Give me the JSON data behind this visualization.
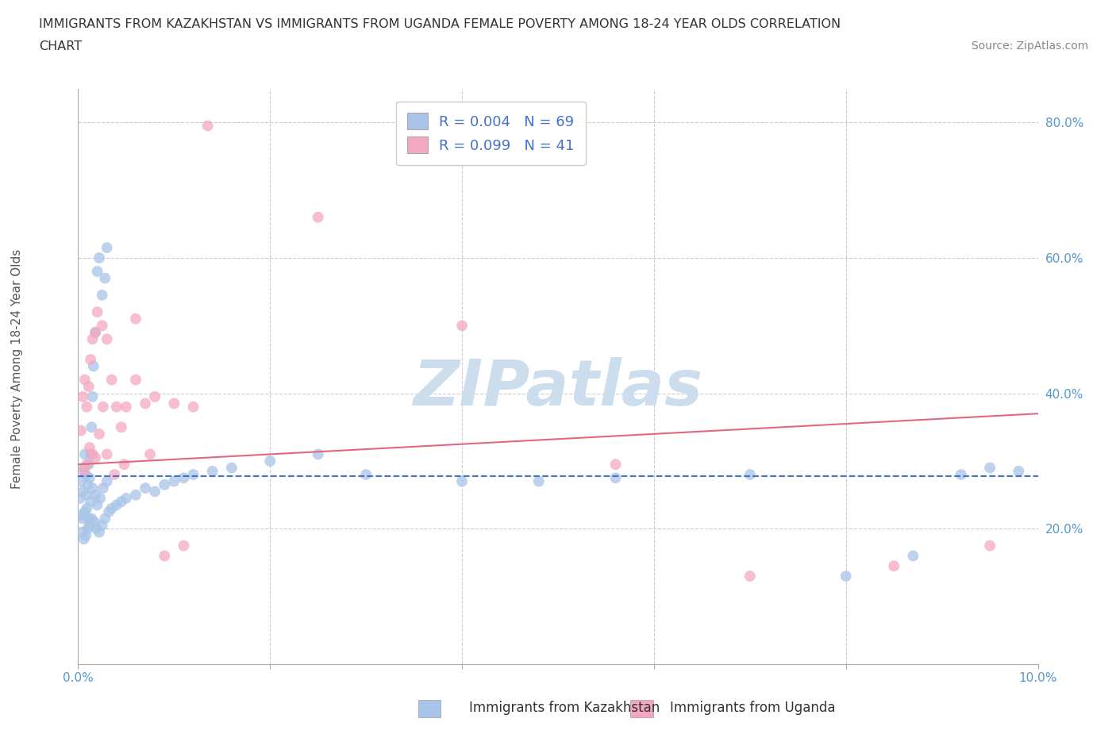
{
  "title_line1": "IMMIGRANTS FROM KAZAKHSTAN VS IMMIGRANTS FROM UGANDA FEMALE POVERTY AMONG 18-24 YEAR OLDS CORRELATION",
  "title_line2": "CHART",
  "source": "Source: ZipAtlas.com",
  "ylabel": "Female Poverty Among 18-24 Year Olds",
  "xlim": [
    0.0,
    0.1
  ],
  "ylim": [
    0.0,
    0.85
  ],
  "xticks": [
    0.0,
    0.02,
    0.04,
    0.06,
    0.08,
    0.1
  ],
  "xtick_labels_show": [
    "0.0%",
    "",
    "",
    "",
    "",
    "10.0%"
  ],
  "yticks": [
    0.0,
    0.2,
    0.4,
    0.6,
    0.8
  ],
  "ytick_labels": [
    "",
    "20.0%",
    "40.0%",
    "60.0%",
    "80.0%"
  ],
  "kaz_R": 0.004,
  "kaz_N": 69,
  "uga_R": 0.099,
  "uga_N": 41,
  "kaz_color": "#a8c4e8",
  "uga_color": "#f4a8c0",
  "kaz_line_color": "#4472c4",
  "uga_line_color": "#e06880",
  "legend_label_kaz": "Immigrants from Kazakhstan",
  "legend_label_uga": "Immigrants from Uganda",
  "watermark": "ZIPatlas",
  "watermark_color": "#ccdded",
  "background_color": "#ffffff",
  "kaz_trend_x0": 0.0,
  "kaz_trend_y0": 0.278,
  "kaz_trend_x1": 0.1,
  "kaz_trend_y1": 0.278,
  "uga_trend_x0": 0.0,
  "uga_trend_y0": 0.295,
  "uga_trend_x1": 0.1,
  "uga_trend_y1": 0.37,
  "kaz_x": [
    0.0002,
    0.0003,
    0.0005,
    0.0006,
    0.0007,
    0.0008,
    0.0009,
    0.001,
    0.0011,
    0.0012,
    0.0013,
    0.0014,
    0.0015,
    0.0016,
    0.0018,
    0.002,
    0.0022,
    0.0025,
    0.0028,
    0.003,
    0.0003,
    0.0005,
    0.0007,
    0.0009,
    0.0011,
    0.0013,
    0.0015,
    0.0018,
    0.002,
    0.0023,
    0.0026,
    0.003,
    0.0004,
    0.0006,
    0.0008,
    0.001,
    0.0012,
    0.0014,
    0.0017,
    0.0019,
    0.0022,
    0.0025,
    0.0028,
    0.0032,
    0.0035,
    0.004,
    0.0045,
    0.005,
    0.006,
    0.007,
    0.008,
    0.009,
    0.01,
    0.011,
    0.012,
    0.014,
    0.016,
    0.02,
    0.025,
    0.03,
    0.04,
    0.048,
    0.056,
    0.07,
    0.08,
    0.087,
    0.092,
    0.095,
    0.098
  ],
  "kaz_y": [
    0.245,
    0.27,
    0.255,
    0.29,
    0.31,
    0.28,
    0.25,
    0.265,
    0.295,
    0.275,
    0.31,
    0.35,
    0.395,
    0.44,
    0.49,
    0.58,
    0.6,
    0.545,
    0.57,
    0.615,
    0.22,
    0.215,
    0.225,
    0.23,
    0.215,
    0.24,
    0.26,
    0.25,
    0.235,
    0.245,
    0.26,
    0.27,
    0.195,
    0.185,
    0.19,
    0.2,
    0.205,
    0.215,
    0.21,
    0.2,
    0.195,
    0.205,
    0.215,
    0.225,
    0.23,
    0.235,
    0.24,
    0.245,
    0.25,
    0.26,
    0.255,
    0.265,
    0.27,
    0.275,
    0.28,
    0.285,
    0.29,
    0.3,
    0.31,
    0.28,
    0.27,
    0.27,
    0.275,
    0.28,
    0.13,
    0.16,
    0.28,
    0.29,
    0.285
  ],
  "uga_x": [
    0.0003,
    0.0005,
    0.0007,
    0.0009,
    0.0011,
    0.0013,
    0.0015,
    0.0018,
    0.002,
    0.0025,
    0.003,
    0.0035,
    0.004,
    0.0045,
    0.005,
    0.006,
    0.007,
    0.008,
    0.01,
    0.012,
    0.0006,
    0.0009,
    0.0012,
    0.0015,
    0.0018,
    0.0022,
    0.0026,
    0.003,
    0.0038,
    0.0048,
    0.006,
    0.0075,
    0.009,
    0.011,
    0.0135,
    0.025,
    0.04,
    0.056,
    0.07,
    0.085,
    0.095
  ],
  "uga_y": [
    0.345,
    0.395,
    0.42,
    0.38,
    0.41,
    0.45,
    0.48,
    0.49,
    0.52,
    0.5,
    0.48,
    0.42,
    0.38,
    0.35,
    0.38,
    0.42,
    0.385,
    0.395,
    0.385,
    0.38,
    0.285,
    0.295,
    0.32,
    0.31,
    0.305,
    0.34,
    0.38,
    0.31,
    0.28,
    0.295,
    0.51,
    0.31,
    0.16,
    0.175,
    0.795,
    0.66,
    0.5,
    0.295,
    0.13,
    0.145,
    0.175
  ]
}
